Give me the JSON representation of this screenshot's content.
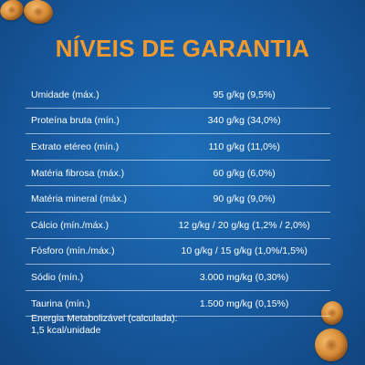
{
  "title": "NÍVEIS DE GARANTIA",
  "rows": [
    {
      "label": "Umidade (máx.)",
      "value": "95 g/kg (9,5%)"
    },
    {
      "label": "Proteína bruta (mín.)",
      "value": "340 g/kg (34,0%)"
    },
    {
      "label": "Extrato etéreo (mín.)",
      "value": "110 g/kg (11,0%)"
    },
    {
      "label": "Matéria fibrosa (máx.)",
      "value": "60 g/kg (6,0%)"
    },
    {
      "label": "Matéria mineral (máx.)",
      "value": "90 g/kg (9,0%)"
    },
    {
      "label": "Cálcio (mín./máx.)",
      "value": "12 g/kg / 20 g/kg (1,2% / 2,0%)"
    },
    {
      "label": "Fósforo (mín./máx.)",
      "value": "10 g/kg / 15 g/kg (1,0%/1,5%)"
    },
    {
      "label": "Sódio (mín.)",
      "value": "3.000 mg/kg (0,30%)"
    },
    {
      "label": "Taurina (mín.)",
      "value": "1.500 mg/kg (0,15%)"
    }
  ],
  "footnote": {
    "line1": "Energia Metabolizável (calculada):",
    "line2": "1,5 kcal/unidade"
  },
  "colors": {
    "background": "#17599e",
    "title": "#f39a2e",
    "text": "#ffffff"
  }
}
